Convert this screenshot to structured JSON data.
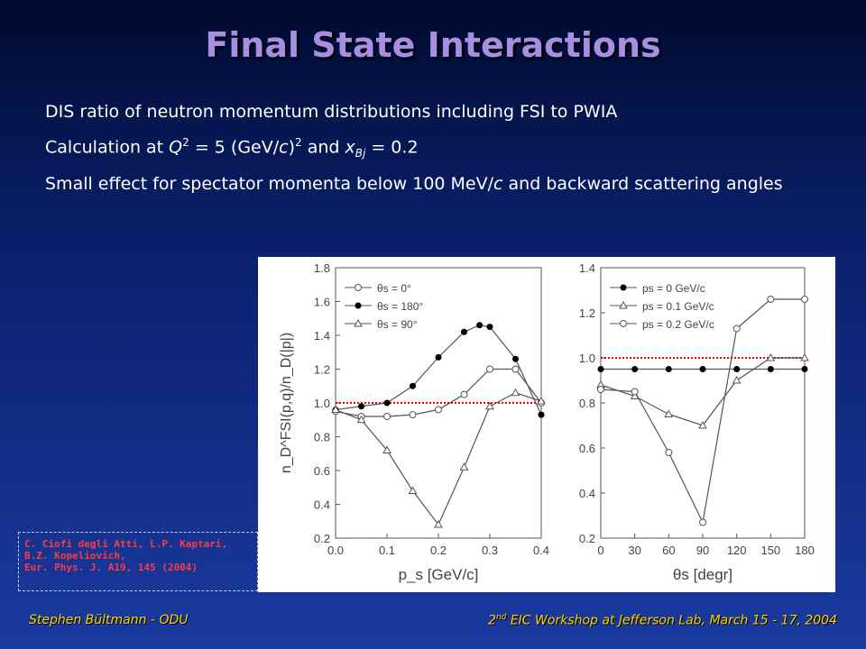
{
  "slide": {
    "title": "Final State Interactions",
    "bullets": [
      "DIS ratio of neutron momentum distributions including FSI to PWIA",
      "Small effect for spectator momenta below 100 MeV/c and backward scattering angles"
    ],
    "calc": {
      "prefix": "Calculation at ",
      "Q": "Q",
      "exp1": "2",
      "mid1": " = 5 (GeV/",
      "c": "c",
      "close": ")",
      "exp2": "2",
      "mid2": " and ",
      "x": "x",
      "sub": "Bj",
      "tail": " = 0.2"
    },
    "spectator": {
      "before": "Small effect for spectator momenta below 100 MeV/",
      "c": "c",
      "after": " and backward scattering angles"
    },
    "reference": [
      "C. Ciofi degli Atti, L.P. Kaptari,",
      "B.Z. Kopeliovich,",
      "Eur. Phys. J. A19, 145 (2004)"
    ],
    "footer_left": "Stephen Bültmann - ODU",
    "footer_right": {
      "pre": "2",
      "sup": "nd",
      "post": " EIC Workshop at Jefferson Lab, March 15 - 17, 2004"
    }
  },
  "chart_data": [
    {
      "type": "line",
      "xlabel": "p_s [GeV/c]",
      "ylabel": "n_D^FSI(p,q)/n_D(|p|)",
      "xlim": [
        0.0,
        0.4
      ],
      "ylim": [
        0.2,
        1.8
      ],
      "xticks": [
        "0.0",
        "0.1",
        "0.2",
        "0.3",
        "0.4"
      ],
      "yticks": [
        "0.2",
        "0.4",
        "0.6",
        "0.8",
        "1.0",
        "1.2",
        "1.4",
        "1.6",
        "1.8"
      ],
      "legend": [
        "θs = 0°",
        "θs = 180°",
        "θs = 90°"
      ],
      "series": [
        {
          "name": "θs = 0°",
          "marker": "open-circle",
          "x": [
            0.0,
            0.05,
            0.1,
            0.15,
            0.2,
            0.25,
            0.3,
            0.35,
            0.4
          ],
          "y": [
            0.95,
            0.92,
            0.92,
            0.93,
            0.96,
            1.05,
            1.2,
            1.2,
            1.0
          ]
        },
        {
          "name": "θs = 180°",
          "marker": "filled-circle",
          "x": [
            0.0,
            0.05,
            0.1,
            0.15,
            0.2,
            0.25,
            0.28,
            0.3,
            0.35,
            0.4
          ],
          "y": [
            0.96,
            0.98,
            1.0,
            1.1,
            1.27,
            1.42,
            1.46,
            1.45,
            1.26,
            0.93
          ]
        },
        {
          "name": "θs = 90°",
          "marker": "open-triangle",
          "x": [
            0.0,
            0.05,
            0.1,
            0.15,
            0.2,
            0.25,
            0.3,
            0.35,
            0.4
          ],
          "y": [
            0.96,
            0.9,
            0.72,
            0.48,
            0.28,
            0.62,
            0.98,
            1.06,
            1.01
          ]
        }
      ]
    },
    {
      "type": "line",
      "xlabel": "θs [degr]",
      "xlim": [
        0,
        180
      ],
      "ylim": [
        0.2,
        1.4
      ],
      "xticks": [
        "0",
        "30",
        "60",
        "90",
        "120",
        "150",
        "180"
      ],
      "yticks": [
        "0.2",
        "0.4",
        "0.6",
        "0.8",
        "1.0",
        "1.2",
        "1.4"
      ],
      "legend": [
        "ps = 0  GeV/c",
        "ps = 0.1 GeV/c",
        "ps = 0.2 GeV/c"
      ],
      "series": [
        {
          "name": "ps = 0  GeV/c",
          "marker": "filled-circle",
          "x": [
            0,
            30,
            60,
            90,
            120,
            150,
            180
          ],
          "y": [
            0.95,
            0.95,
            0.95,
            0.95,
            0.95,
            0.95,
            0.95
          ]
        },
        {
          "name": "ps = 0.1 GeV/c",
          "marker": "open-triangle",
          "x": [
            0,
            30,
            60,
            90,
            120,
            150,
            180
          ],
          "y": [
            0.88,
            0.83,
            0.75,
            0.7,
            0.9,
            1.0,
            1.0
          ]
        },
        {
          "name": "ps = 0.2 GeV/c",
          "marker": "open-circle",
          "x": [
            0,
            30,
            60,
            90,
            120,
            150,
            180
          ],
          "y": [
            0.86,
            0.85,
            0.58,
            0.27,
            1.13,
            1.26,
            1.26
          ]
        }
      ]
    }
  ]
}
